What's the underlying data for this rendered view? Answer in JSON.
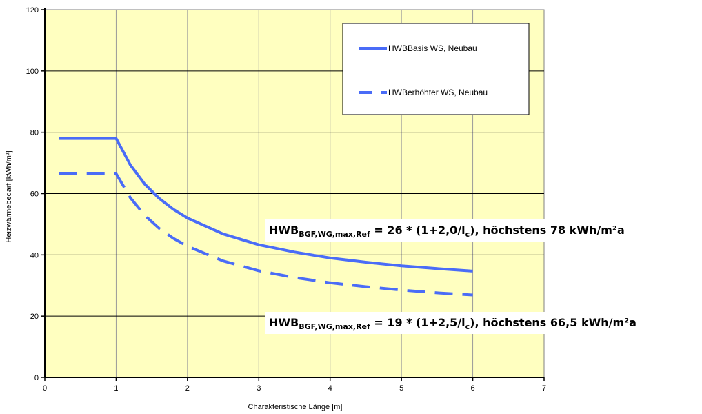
{
  "chart_data": {
    "type": "line",
    "xlabel": "Charakteristische Länge [m]",
    "ylabel": "Heizwärmebedarf [kWh/m²]",
    "xlim": [
      0,
      7
    ],
    "ylim": [
      0,
      120
    ],
    "x_ticks": [
      "0",
      "1",
      "2",
      "3",
      "4",
      "5",
      "6",
      "7"
    ],
    "y_ticks": [
      "0",
      "20",
      "40",
      "60",
      "80",
      "100",
      "120"
    ],
    "grid": true,
    "background_color": "#ffffc0",
    "legend_position": "top-right",
    "series": [
      {
        "name": "HWBBasis WS, Neubau",
        "style": "solid",
        "color": "#4a6cf7",
        "x": [
          0.2,
          1.0,
          1.2,
          1.4,
          1.6,
          1.8,
          2.0,
          2.5,
          3.0,
          3.5,
          4.0,
          4.5,
          5.0,
          5.5,
          6.0
        ],
        "y": [
          78,
          78,
          69.3,
          63.1,
          58.5,
          54.9,
          52.0,
          46.8,
          43.3,
          40.9,
          39.0,
          37.6,
          36.4,
          35.5,
          34.7
        ]
      },
      {
        "name": "HWBerhöhter WS, Neubau",
        "style": "dashed",
        "color": "#4a6cf7",
        "x": [
          0.2,
          1.0,
          1.2,
          1.4,
          1.6,
          1.8,
          2.0,
          2.5,
          3.0,
          3.5,
          4.0,
          4.5,
          5.0,
          5.5,
          6.0
        ],
        "y": [
          66.5,
          66.5,
          58.6,
          52.9,
          48.7,
          45.4,
          42.8,
          38.0,
          34.8,
          32.6,
          30.9,
          29.6,
          28.5,
          27.6,
          26.9
        ]
      }
    ],
    "annotations": [
      {
        "prefix": "HWB",
        "sub": "BGF,WG,max,Ref",
        "mid": " = 26 * (1+2,0/l",
        "sub2": "c",
        "suffix": "), höchstens 78 kWh/m²a"
      },
      {
        "prefix": "HWB",
        "sub": "BGF,WG,max,Ref",
        "mid": " = 19 * (1+2,5/l",
        "sub2": "c",
        "suffix": "), höchstens 66,5 kWh/m²a"
      }
    ]
  }
}
